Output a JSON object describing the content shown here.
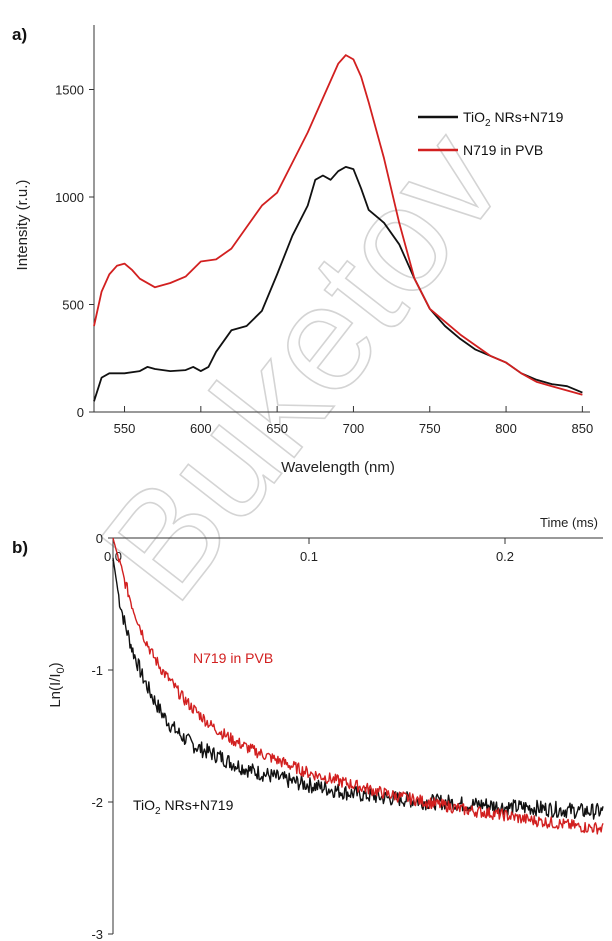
{
  "watermark": "Buketov",
  "chart_data": [
    {
      "panel_label": "a)",
      "type": "line",
      "xlabel": "Wavelength (nm)",
      "ylabel": "Intensity (r.u.)",
      "xlim": [
        530,
        855
      ],
      "ylim": [
        0,
        1800
      ],
      "xticks": [
        550,
        600,
        650,
        700,
        750,
        800,
        850
      ],
      "yticks": [
        0,
        500,
        1000,
        1500
      ],
      "legend": "right",
      "series": [
        {
          "name_main": "TiO",
          "name_sub": "2",
          "name_tail": " NRs+N719",
          "color": "#111111",
          "x": [
            530,
            535,
            540,
            550,
            560,
            565,
            570,
            580,
            590,
            595,
            600,
            605,
            610,
            620,
            630,
            640,
            650,
            660,
            670,
            675,
            680,
            685,
            690,
            695,
            700,
            705,
            710,
            720,
            730,
            740,
            750,
            760,
            770,
            780,
            790,
            800,
            810,
            820,
            830,
            840,
            850
          ],
          "y": [
            50,
            160,
            180,
            180,
            190,
            210,
            200,
            190,
            195,
            210,
            190,
            210,
            280,
            380,
            400,
            470,
            640,
            820,
            960,
            1080,
            1100,
            1080,
            1120,
            1140,
            1130,
            1040,
            940,
            880,
            780,
            620,
            480,
            400,
            340,
            290,
            260,
            230,
            180,
            150,
            130,
            120,
            90
          ]
        },
        {
          "name": "N719 in PVB",
          "color": "#d22020",
          "x": [
            530,
            535,
            540,
            545,
            550,
            555,
            560,
            570,
            580,
            590,
            600,
            610,
            620,
            630,
            640,
            650,
            660,
            670,
            680,
            690,
            695,
            700,
            705,
            710,
            720,
            730,
            740,
            750,
            760,
            770,
            780,
            790,
            800,
            810,
            820,
            830,
            840,
            850
          ],
          "y": [
            400,
            560,
            640,
            680,
            690,
            660,
            620,
            580,
            600,
            630,
            700,
            710,
            760,
            860,
            960,
            1020,
            1160,
            1300,
            1460,
            1620,
            1660,
            1640,
            1560,
            1440,
            1180,
            880,
            620,
            480,
            420,
            360,
            310,
            260,
            230,
            180,
            140,
            120,
            100,
            80
          ]
        }
      ]
    },
    {
      "panel_label": "b)",
      "type": "line",
      "xlabel": "Time (ms)",
      "ylabel_main": "Ln(I/I",
      "ylabel_sub": "0",
      "ylabel_tail": ")",
      "xlim": [
        0,
        0.25
      ],
      "ylim": [
        -3,
        0
      ],
      "xticks": [
        0.0,
        0.1,
        0.2
      ],
      "xtick_labels": [
        "0.0",
        "0.1",
        "0.2"
      ],
      "yticks": [
        0,
        -1,
        -2,
        -3
      ],
      "annotations": [
        {
          "series": 1,
          "text": "N719 in PVB"
        },
        {
          "series": 0,
          "text_main": "TiO",
          "text_sub": "2",
          "text_tail": " NRs+N719"
        }
      ],
      "series": [
        {
          "name_main": "TiO",
          "name_sub": "2",
          "name_tail": " NRs+N719",
          "color": "#111111",
          "x": [
            0,
            0.003,
            0.006,
            0.01,
            0.015,
            0.02,
            0.025,
            0.03,
            0.035,
            0.04,
            0.045,
            0.05,
            0.055,
            0.06,
            0.07,
            0.08,
            0.09,
            0.1,
            0.11,
            0.12,
            0.13,
            0.14,
            0.15,
            0.16,
            0.17,
            0.18,
            0.19,
            0.2,
            0.21,
            0.22,
            0.23,
            0.24,
            0.25
          ],
          "y": [
            -0.15,
            -0.45,
            -0.65,
            -0.85,
            -1.05,
            -1.2,
            -1.33,
            -1.43,
            -1.5,
            -1.56,
            -1.6,
            -1.63,
            -1.66,
            -1.7,
            -1.76,
            -1.8,
            -1.84,
            -1.87,
            -1.9,
            -1.93,
            -1.95,
            -1.97,
            -1.98,
            -2.0,
            -2.0,
            -2.02,
            -2.02,
            -2.04,
            -2.04,
            -2.05,
            -2.06,
            -2.07,
            -2.07
          ]
        },
        {
          "name": "N719 in PVB",
          "color": "#d22020",
          "x": [
            0,
            0.005,
            0.01,
            0.015,
            0.02,
            0.025,
            0.03,
            0.035,
            0.04,
            0.045,
            0.05,
            0.055,
            0.06,
            0.065,
            0.07,
            0.075,
            0.08,
            0.09,
            0.1,
            0.11,
            0.12,
            0.13,
            0.14,
            0.15,
            0.16,
            0.17,
            0.18,
            0.19,
            0.2,
            0.21,
            0.22,
            0.23,
            0.24,
            0.25
          ],
          "y": [
            0,
            -0.28,
            -0.52,
            -0.72,
            -0.88,
            -1.0,
            -1.1,
            -1.2,
            -1.28,
            -1.35,
            -1.42,
            -1.47,
            -1.52,
            -1.56,
            -1.6,
            -1.63,
            -1.66,
            -1.72,
            -1.78,
            -1.82,
            -1.86,
            -1.9,
            -1.94,
            -1.97,
            -2.0,
            -2.03,
            -2.06,
            -2.08,
            -2.1,
            -2.13,
            -2.15,
            -2.17,
            -2.19,
            -2.2
          ]
        }
      ]
    }
  ]
}
